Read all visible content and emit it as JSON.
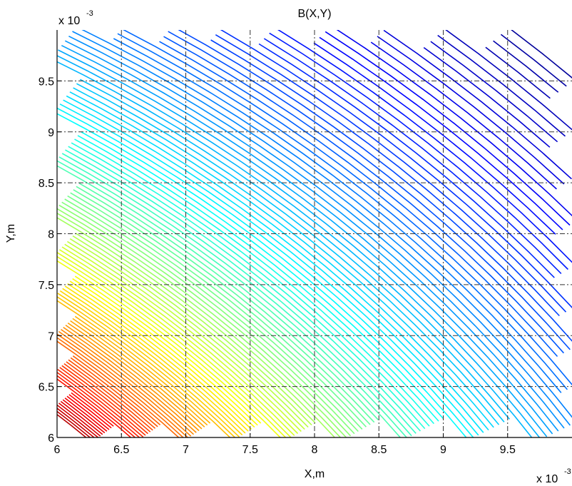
{
  "chart_data": {
    "type": "contour",
    "title": "B(X,Y)",
    "xlabel": "X,m",
    "ylabel": "Y,m",
    "x_exponent": "x 10",
    "x_exponent_power": "-3",
    "y_exponent": "x 10",
    "y_exponent_power": "-3",
    "xlim": [
      6,
      10
    ],
    "ylim": [
      6,
      10
    ],
    "x_ticks": [
      6,
      6.5,
      7,
      7.5,
      8,
      8.5,
      9,
      9.5
    ],
    "x_tick_labels": [
      "6",
      "6.5",
      "7",
      "7.5",
      "8",
      "8.5",
      "9",
      "9.5"
    ],
    "y_ticks": [
      6,
      6.5,
      7,
      7.5,
      8,
      8.5,
      9,
      9.5
    ],
    "y_tick_labels": [
      "6",
      "6.5",
      "7",
      "7.5",
      "8",
      "8.5",
      "9",
      "9.5"
    ],
    "grid": true,
    "colormap": "jet",
    "level_count": 130
  }
}
